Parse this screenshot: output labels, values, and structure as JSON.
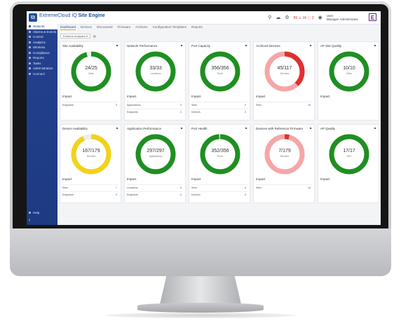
{
  "header": {
    "logo_glyph": "⧉",
    "title_prefix": "ExtremeCloud IQ ",
    "title_strong": "Site Engine",
    "alerts": "55 ⚠ 16 ⓘ 2",
    "user_name": "User",
    "user_role": "Manager Administrator",
    "brand_glyph": "E"
  },
  "sidebar": {
    "items": [
      {
        "label": "Network"
      },
      {
        "label": "Alarms & Events"
      },
      {
        "label": "Control"
      },
      {
        "label": "Analytics"
      },
      {
        "label": "Wireless"
      },
      {
        "label": "Compliance"
      },
      {
        "label": "Reports"
      },
      {
        "label": "Tasks"
      },
      {
        "label": "Administration"
      },
      {
        "label": "Connect"
      }
    ],
    "help_label": "Help",
    "collapse_glyph": "‹"
  },
  "tabs": [
    "Dashboard",
    "Devices",
    "Discovered",
    "Firmware",
    "Archives",
    "Configuration Templates",
    "Reports"
  ],
  "toolbar": {
    "selector": "Extreme Analytics ▾",
    "icon_glyph": "▤"
  },
  "colors": {
    "good": "#1f8f22",
    "warn": "#f2d21b",
    "alert_fill": "#f5a6a6",
    "alert_mark": "#e03030",
    "track": "#eeeeee"
  },
  "cards": [
    {
      "title": "Site Availability",
      "value": "24/25",
      "unit": "Sites",
      "ratio": 0.96,
      "color": "good",
      "impact": "Impact",
      "rows": [
        {
          "label": "Endpoints",
          "count": "0"
        }
      ]
    },
    {
      "title": "Network Performance",
      "value": "33/33",
      "unit": "Locations",
      "ratio": 1.0,
      "color": "good",
      "impact": "Impact",
      "rows": [
        {
          "label": "Applications",
          "count": "0"
        },
        {
          "label": "Endpoints",
          "count": "0"
        }
      ]
    },
    {
      "title": "Port Capacity",
      "value": "356/356",
      "unit": "Ports",
      "ratio": 1.0,
      "color": "good",
      "impact": "Impact",
      "rows": [
        {
          "label": "Sites",
          "count": "0"
        },
        {
          "label": "Devices",
          "count": "0"
        }
      ]
    },
    {
      "title": "Archived Devices",
      "value": "45/117",
      "unit": "Devices",
      "ratio": 0.38,
      "color": "alert",
      "impact": "Impact",
      "rows": [
        {
          "label": "Sites",
          "count": "15"
        }
      ]
    },
    {
      "title": "AP Site Quality",
      "value": "10/10",
      "unit": "Sites",
      "ratio": 1.0,
      "color": "good",
      "impact": "Impact",
      "rows": []
    },
    {
      "title": "Device Availability",
      "value": "167/179",
      "unit": "Devices",
      "ratio": 0.93,
      "color": "warn",
      "impact": "Impact",
      "rows": [
        {
          "label": "Sites",
          "count": "7"
        },
        {
          "label": "Endpoints",
          "count": "0"
        }
      ]
    },
    {
      "title": "Application Performance",
      "value": "297/297",
      "unit": "Applications",
      "ratio": 1.0,
      "color": "good",
      "impact": "Impact",
      "rows": [
        {
          "label": "Locations",
          "count": "0"
        },
        {
          "label": "Endpoints",
          "count": "0"
        }
      ]
    },
    {
      "title": "Port Health",
      "value": "352/356",
      "unit": "Ports",
      "ratio": 0.99,
      "color": "good",
      "impact": "Impact",
      "rows": [
        {
          "label": "Sites",
          "count": "0"
        },
        {
          "label": "Devices",
          "count": "0"
        }
      ]
    },
    {
      "title": "Devices with Reference Firmware",
      "value": "7/179",
      "unit": "Devices",
      "ratio": 0.04,
      "color": "alert",
      "impact": "Impact",
      "rows": [
        {
          "label": "Sites",
          "count": "14"
        }
      ]
    },
    {
      "title": "AP Quality",
      "value": "17/17",
      "unit": "APs",
      "ratio": 1.0,
      "color": "good",
      "impact": "Impact",
      "rows": []
    }
  ]
}
